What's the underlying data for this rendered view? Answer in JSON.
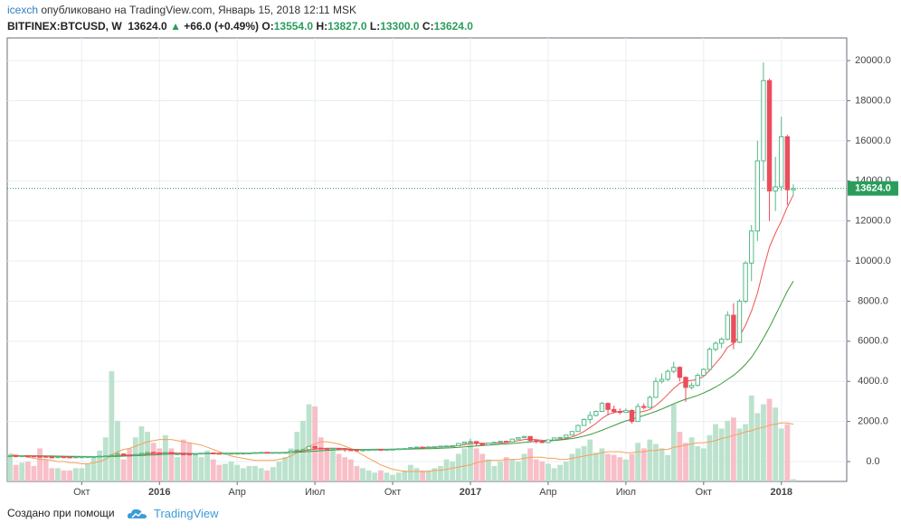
{
  "header": {
    "author": "icexch",
    "published": "опубликовано на TradingView.com, Январь 15, 2018 12:11 MSK",
    "symbol": "BITFINEX:BTCUSD, W",
    "last": "13624.0",
    "arrow": "▲",
    "change": "+66.0 (+0.49%)",
    "o_label": "O:",
    "o": "13554.0",
    "h_label": "H:",
    "h": "13827.0",
    "l_label": "L:",
    "l": "13300.0",
    "c_label": "C:",
    "c": "13624.0"
  },
  "footer": {
    "text": "Создано при помощи",
    "brand": "TradingView"
  },
  "chart_data": {
    "type": "candlestick",
    "categories": [
      null,
      null,
      null,
      null,
      null,
      null,
      null,
      null,
      null,
      null,
      null,
      null,
      "Окт",
      null,
      null,
      null,
      null,
      null,
      null,
      null,
      null,
      null,
      null,
      null,
      null,
      "2016",
      null,
      null,
      null,
      null,
      null,
      null,
      null,
      null,
      null,
      null,
      null,
      null,
      "Апр",
      null,
      null,
      null,
      null,
      null,
      null,
      null,
      null,
      null,
      null,
      null,
      null,
      "Июл",
      null,
      null,
      null,
      null,
      null,
      null,
      null,
      null,
      null,
      null,
      null,
      null,
      "Окт",
      null,
      null,
      null,
      null,
      null,
      null,
      null,
      null,
      null,
      null,
      null,
      null,
      "2017",
      null,
      null,
      null,
      null,
      null,
      null,
      null,
      null,
      null,
      null,
      null,
      null,
      "Апр",
      null,
      null,
      null,
      null,
      null,
      null,
      null,
      null,
      null,
      null,
      null,
      null,
      "Июл",
      null,
      null,
      null,
      null,
      null,
      null,
      null,
      null,
      null,
      null,
      null,
      null,
      "Окт",
      null,
      null,
      null,
      null,
      null,
      null,
      null,
      null,
      null,
      null,
      null,
      null,
      "2018",
      null,
      null
    ],
    "candles": [
      [
        280,
        295,
        275,
        290
      ],
      [
        290,
        295,
        280,
        285
      ],
      [
        285,
        295,
        282,
        290
      ],
      [
        290,
        298,
        278,
        280
      ],
      [
        280,
        284,
        260,
        265
      ],
      [
        265,
        270,
        255,
        260
      ],
      [
        260,
        262,
        220,
        230
      ],
      [
        230,
        238,
        222,
        228
      ],
      [
        228,
        245,
        225,
        240
      ],
      [
        240,
        242,
        228,
        232
      ],
      [
        232,
        236,
        225,
        230
      ],
      [
        230,
        240,
        228,
        235
      ],
      [
        235,
        242,
        232,
        238
      ],
      [
        238,
        248,
        236,
        245
      ],
      [
        245,
        255,
        243,
        250
      ],
      [
        250,
        275,
        248,
        270
      ],
      [
        270,
        295,
        268,
        285
      ],
      [
        285,
        335,
        283,
        325
      ],
      [
        325,
        500,
        320,
        380
      ],
      [
        380,
        390,
        310,
        330
      ],
      [
        330,
        335,
        305,
        325
      ],
      [
        325,
        365,
        320,
        360
      ],
      [
        360,
        420,
        355,
        410
      ],
      [
        410,
        470,
        405,
        460
      ],
      [
        460,
        470,
        425,
        435
      ],
      [
        435,
        440,
        410,
        425
      ],
      [
        425,
        460,
        420,
        450
      ],
      [
        450,
        455,
        370,
        385
      ],
      [
        385,
        395,
        375,
        385
      ],
      [
        385,
        400,
        365,
        380
      ],
      [
        380,
        385,
        365,
        375
      ],
      [
        375,
        395,
        370,
        390
      ],
      [
        390,
        425,
        385,
        420
      ],
      [
        420,
        440,
        410,
        430
      ],
      [
        430,
        435,
        405,
        415
      ],
      [
        415,
        420,
        400,
        410
      ],
      [
        410,
        420,
        405,
        415
      ],
      [
        415,
        420,
        410,
        415
      ],
      [
        415,
        425,
        410,
        420
      ],
      [
        420,
        425,
        415,
        420
      ],
      [
        420,
        435,
        418,
        430
      ],
      [
        430,
        455,
        428,
        450
      ],
      [
        450,
        465,
        445,
        460
      ],
      [
        460,
        462,
        440,
        450
      ],
      [
        450,
        460,
        445,
        455
      ],
      [
        455,
        460,
        448,
        455
      ],
      [
        455,
        465,
        450,
        460
      ],
      [
        460,
        535,
        458,
        530
      ],
      [
        530,
        585,
        525,
        575
      ],
      [
        575,
        610,
        560,
        600
      ],
      [
        600,
        780,
        595,
        750
      ],
      [
        750,
        760,
        620,
        670
      ],
      [
        670,
        690,
        640,
        660
      ],
      [
        660,
        680,
        640,
        650
      ],
      [
        650,
        670,
        645,
        660
      ],
      [
        660,
        670,
        640,
        650
      ],
      [
        650,
        655,
        480,
        590
      ],
      [
        590,
        600,
        565,
        580
      ],
      [
        580,
        590,
        560,
        570
      ],
      [
        570,
        590,
        565,
        580
      ],
      [
        580,
        605,
        575,
        600
      ],
      [
        600,
        615,
        595,
        610
      ],
      [
        610,
        612,
        595,
        600
      ],
      [
        600,
        610,
        598,
        605
      ],
      [
        605,
        620,
        603,
        615
      ],
      [
        615,
        645,
        612,
        640
      ],
      [
        640,
        655,
        635,
        650
      ],
      [
        650,
        705,
        645,
        700
      ],
      [
        700,
        740,
        695,
        720
      ],
      [
        720,
        725,
        690,
        710
      ],
      [
        710,
        735,
        705,
        730
      ],
      [
        730,
        745,
        725,
        740
      ],
      [
        740,
        775,
        735,
        770
      ],
      [
        770,
        790,
        760,
        780
      ],
      [
        780,
        800,
        775,
        790
      ],
      [
        790,
        910,
        785,
        900
      ],
      [
        900,
        980,
        895,
        970
      ],
      [
        970,
        1150,
        960,
        1000
      ],
      [
        1000,
        1010,
        750,
        900
      ],
      [
        900,
        920,
        810,
        830
      ],
      [
        830,
        930,
        820,
        920
      ],
      [
        920,
        970,
        910,
        960
      ],
      [
        960,
        1020,
        950,
        1010
      ],
      [
        1010,
        1030,
        980,
        990
      ],
      [
        990,
        1130,
        985,
        1120
      ],
      [
        1120,
        1200,
        1110,
        1190
      ],
      [
        1190,
        1290,
        1180,
        1250
      ],
      [
        1250,
        1260,
        980,
        1050
      ],
      [
        1050,
        1080,
        900,
        1000
      ],
      [
        1000,
        1010,
        930,
        950
      ],
      [
        950,
        1090,
        945,
        1080
      ],
      [
        1080,
        1190,
        1075,
        1180
      ],
      [
        1180,
        1210,
        1150,
        1200
      ],
      [
        1200,
        1330,
        1190,
        1320
      ],
      [
        1320,
        1520,
        1310,
        1500
      ],
      [
        1500,
        1850,
        1490,
        1800
      ],
      [
        1800,
        2150,
        1790,
        2100
      ],
      [
        2100,
        2500,
        1900,
        2300
      ],
      [
        2300,
        2550,
        2250,
        2500
      ],
      [
        2500,
        2980,
        2480,
        2900
      ],
      [
        2900,
        2950,
        2300,
        2600
      ],
      [
        2600,
        2800,
        2400,
        2500
      ],
      [
        2500,
        2650,
        2350,
        2450
      ],
      [
        2450,
        2650,
        2430,
        2550
      ],
      [
        2550,
        2600,
        1900,
        2000
      ],
      [
        2000,
        2900,
        1980,
        2750
      ],
      [
        2750,
        2900,
        2600,
        2700
      ],
      [
        2700,
        3300,
        2690,
        3200
      ],
      [
        3200,
        4200,
        3190,
        4000
      ],
      [
        4000,
        4400,
        3900,
        4100
      ],
      [
        4100,
        4600,
        4000,
        4500
      ],
      [
        4500,
        4980,
        4400,
        4700
      ],
      [
        4700,
        4750,
        4000,
        4200
      ],
      [
        4200,
        4250,
        2980,
        3700
      ],
      [
        3700,
        3950,
        3600,
        3800
      ],
      [
        3800,
        4400,
        3750,
        4300
      ],
      [
        4300,
        4650,
        4250,
        4600
      ],
      [
        4600,
        5700,
        4550,
        5600
      ],
      [
        5600,
        6000,
        5500,
        5900
      ],
      [
        5900,
        6200,
        5650,
        6100
      ],
      [
        6100,
        7500,
        6050,
        7300
      ],
      [
        7300,
        7900,
        5600,
        5950
      ],
      [
        5950,
        8100,
        5900,
        8000
      ],
      [
        8000,
        10000,
        7900,
        9900
      ],
      [
        9900,
        11800,
        9000,
        11500
      ],
      [
        11500,
        16000,
        11000,
        15000
      ],
      [
        15000,
        19900,
        14000,
        19000
      ],
      [
        19000,
        19100,
        12000,
        13500
      ],
      [
        13500,
        15200,
        12500,
        13700
      ],
      [
        13700,
        17200,
        13500,
        16200
      ],
      [
        16200,
        16300,
        12800,
        13558
      ],
      [
        13554,
        13827,
        13300,
        13624
      ]
    ],
    "up_color": "#53b987",
    "down_color": "#eb4d5c",
    "series": [
      {
        "color": "#f0524f",
        "values": [
          290,
          288,
          287,
          285,
          282,
          278,
          268,
          258,
          250,
          242,
          236,
          234,
          234,
          237,
          240,
          246,
          256,
          272,
          295,
          310,
          322,
          335,
          350,
          375,
          400,
          420,
          432,
          432,
          425,
          415,
          405,
          395,
          392,
          395,
          400,
          405,
          410,
          412,
          415,
          417,
          420,
          425,
          432,
          438,
          445,
          450,
          455,
          475,
          500,
          530,
          580,
          620,
          645,
          660,
          665,
          660,
          640,
          620,
          605,
          590,
          585,
          590,
          595,
          600,
          605,
          615,
          625,
          645,
          665,
          685,
          700,
          715,
          730,
          745,
          760,
          800,
          850,
          900,
          915,
          910,
          905,
          910,
          920,
          950,
          990,
          1040,
          1100,
          1110,
          1090,
          1060,
          1050,
          1070,
          1100,
          1150,
          1230,
          1350,
          1500,
          1700,
          1900,
          2150,
          2350,
          2450,
          2500,
          2520,
          2450,
          2450,
          2500,
          2600,
          2800,
          3050,
          3350,
          3650,
          3900,
          4000,
          4050,
          4100,
          4250,
          4550,
          4900,
          5250,
          5700,
          5900,
          6250,
          6800,
          7500,
          8400,
          9600,
          10700,
          11400,
          12000,
          12700,
          13300
        ]
      },
      {
        "color": "#3a9a3a",
        "values": [
          290,
          290,
          289,
          288,
          287,
          285,
          282,
          278,
          273,
          268,
          263,
          258,
          254,
          252,
          250,
          249,
          250,
          254,
          262,
          270,
          280,
          292,
          306,
          320,
          335,
          350,
          365,
          375,
          382,
          388,
          392,
          396,
          400,
          404,
          407,
          410,
          412,
          414,
          416,
          418,
          420,
          422,
          425,
          428,
          432,
          436,
          442,
          452,
          465,
          480,
          500,
          520,
          540,
          560,
          575,
          588,
          595,
          600,
          604,
          607,
          610,
          612,
          614,
          616,
          618,
          620,
          622,
          625,
          630,
          636,
          643,
          652,
          662,
          675,
          690,
          710,
          735,
          760,
          780,
          800,
          820,
          840,
          860,
          880,
          900,
          925,
          955,
          980,
          1000,
          1015,
          1030,
          1050,
          1080,
          1110,
          1150,
          1200,
          1270,
          1350,
          1450,
          1560,
          1680,
          1800,
          1920,
          2030,
          2120,
          2210,
          2300,
          2400,
          2500,
          2620,
          2750,
          2880,
          3000,
          3110,
          3200,
          3300,
          3420,
          3560,
          3720,
          3900,
          4100,
          4300,
          4550,
          4850,
          5200,
          5650,
          6150,
          6700,
          7300,
          7900,
          8500,
          9000
        ]
      }
    ],
    "volume": [
      25,
      15,
      17,
      18,
      14,
      30,
      20,
      12,
      12,
      10,
      10,
      12,
      12,
      16,
      22,
      28,
      40,
      100,
      55,
      20,
      30,
      40,
      50,
      45,
      35,
      30,
      42,
      30,
      22,
      38,
      35,
      25,
      22,
      28,
      20,
      15,
      16,
      18,
      15,
      12,
      14,
      14,
      12,
      10,
      13,
      18,
      22,
      30,
      45,
      55,
      70,
      68,
      40,
      30,
      28,
      25,
      22,
      20,
      14,
      12,
      10,
      8,
      10,
      8,
      6,
      8,
      10,
      15,
      12,
      10,
      10,
      12,
      14,
      20,
      18,
      25,
      30,
      35,
      30,
      25,
      20,
      14,
      18,
      22,
      20,
      18,
      25,
      30,
      20,
      18,
      16,
      12,
      15,
      18,
      25,
      30,
      32,
      38,
      26,
      30,
      25,
      24,
      22,
      20,
      25,
      35,
      30,
      38,
      34,
      30,
      24,
      70,
      45,
      35,
      40,
      32,
      30,
      42,
      52,
      48,
      55,
      58,
      48,
      52,
      78,
      62,
      70,
      75,
      67,
      48,
      52,
      2
    ],
    "volume_ylim": [
      0,
      100
    ],
    "volume_ma": {
      "color": "#f5a05a",
      "values": [
        25,
        24,
        23,
        22,
        21,
        20,
        20,
        19,
        18,
        18,
        17,
        17,
        16,
        16,
        17,
        18,
        20,
        24,
        27,
        29,
        30,
        32,
        34,
        36,
        37,
        38,
        38,
        38,
        37,
        36,
        35,
        34,
        33,
        31,
        29,
        27,
        25,
        23,
        22,
        21,
        20,
        19,
        19,
        19,
        19,
        20,
        21,
        23,
        26,
        29,
        32,
        34,
        36,
        36,
        35,
        34,
        32,
        30,
        27,
        24,
        21,
        18,
        15,
        13,
        11,
        10,
        9,
        9,
        9,
        9,
        9,
        10,
        10,
        11,
        12,
        13,
        14,
        15,
        17,
        18,
        19,
        19,
        19,
        20,
        20,
        20,
        21,
        22,
        22,
        22,
        21,
        21,
        20,
        20,
        21,
        22,
        23,
        24,
        25,
        26,
        27,
        27,
        27,
        26,
        26,
        27,
        27,
        28,
        28,
        29,
        29,
        31,
        32,
        33,
        34,
        35,
        35,
        36,
        37,
        39,
        40,
        42,
        43,
        45,
        46,
        48,
        49,
        51,
        52,
        53,
        53,
        52
      ]
    },
    "ylim": [
      -990,
      21130
    ],
    "yticks": [
      {
        "value": 0,
        "label": "0.0"
      },
      {
        "value": 2000,
        "label": "2000.0"
      },
      {
        "value": 4000,
        "label": "4000.0"
      },
      {
        "value": 6000,
        "label": "6000.0"
      },
      {
        "value": 8000,
        "label": "8000.0"
      },
      {
        "value": 10000,
        "label": "10000.0"
      },
      {
        "value": 12000,
        "label": "12000.0"
      },
      {
        "value": 14000,
        "label": "14000.0"
      },
      {
        "value": 16000,
        "label": "16000.0"
      },
      {
        "value": 18000,
        "label": "18000.0"
      },
      {
        "value": 20000,
        "label": "20000.0"
      }
    ],
    "last_price": {
      "value": 13624,
      "label": "13624.0",
      "color": "#2a9d5c"
    },
    "grid": true
  }
}
